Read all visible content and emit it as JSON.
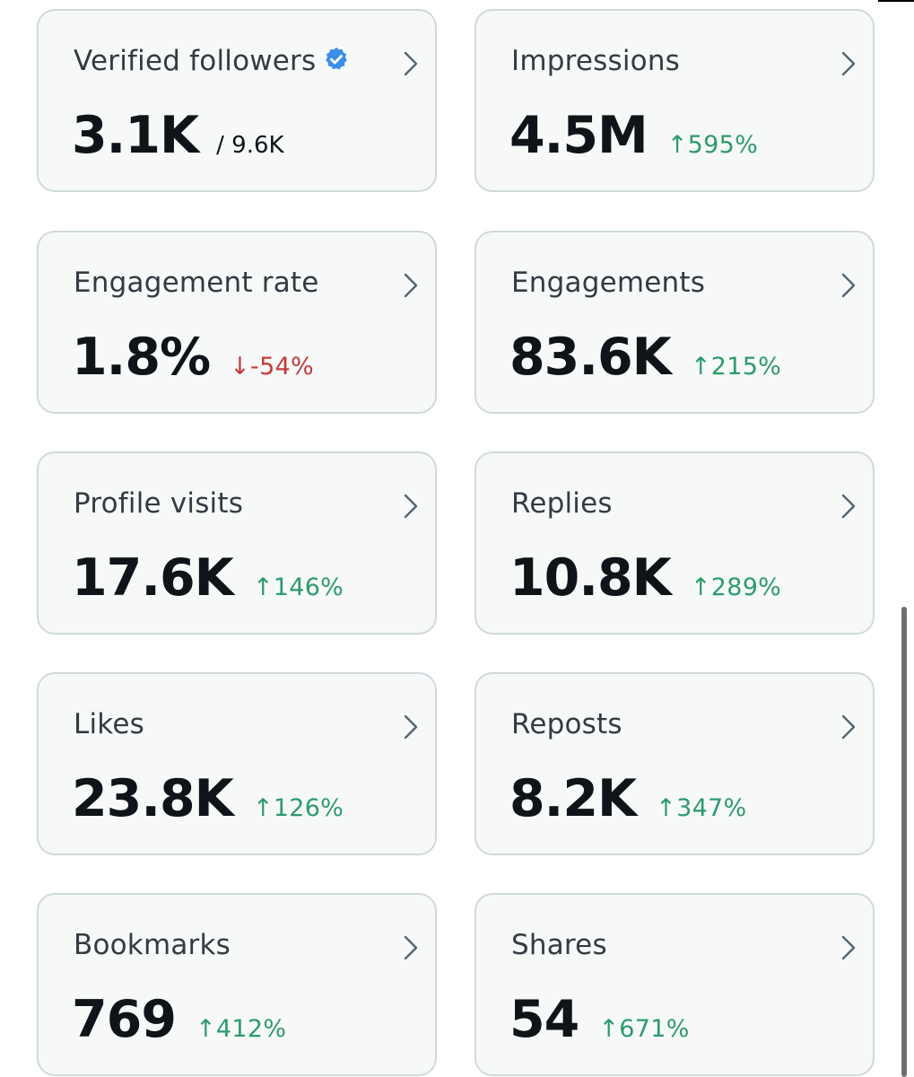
{
  "cards": [
    {
      "label": "Verified followers",
      "value": "3.1K",
      "sub": "/ 9.6K",
      "verified_icon": "verified-badge-icon",
      "badge_color": "#3b8ee8"
    },
    {
      "label": "Impressions",
      "value": "4.5M",
      "arrow": "↑",
      "change": "595%",
      "trend": "up"
    },
    {
      "label": "Engagement rate",
      "value": "1.8%",
      "arrow": "↓",
      "change": "-54%",
      "trend": "down"
    },
    {
      "label": "Engagements",
      "value": "83.6K",
      "arrow": "↑",
      "change": "215%",
      "trend": "up"
    },
    {
      "label": "Profile visits",
      "value": "17.6K",
      "arrow": "↑",
      "change": "146%",
      "trend": "up"
    },
    {
      "label": "Replies",
      "value": "10.8K",
      "arrow": "↑",
      "change": "289%",
      "trend": "up"
    },
    {
      "label": "Likes",
      "value": "23.8K",
      "arrow": "↑",
      "change": "126%",
      "trend": "up"
    },
    {
      "label": "Reposts",
      "value": "8.2K",
      "arrow": "↑",
      "change": "347%",
      "trend": "up"
    },
    {
      "label": "Bookmarks",
      "value": "769",
      "arrow": "↑",
      "change": "412%",
      "trend": "up"
    },
    {
      "label": "Shares",
      "value": "54",
      "arrow": "↑",
      "change": "671%",
      "trend": "up"
    }
  ],
  "colors": {
    "up": "#2d9b6a",
    "down": "#c43a3a",
    "card_bg": "#f7f9f9",
    "card_border": "#cfd9de"
  }
}
